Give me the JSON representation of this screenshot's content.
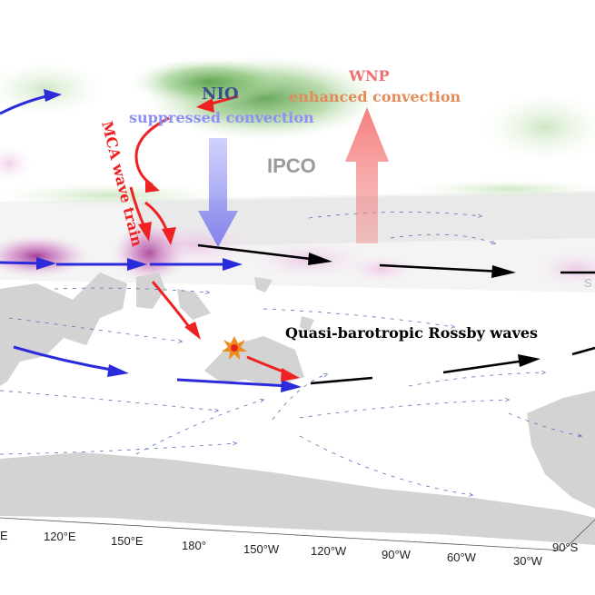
{
  "colors": {
    "enhanced_fill": "#7fb86a",
    "suppressed_fill": "#b24f9f",
    "blue_arrow": "#2b2bdc",
    "red_arrow": "#ee2222",
    "black_arrow": "#000000",
    "land": "#d3d3d3",
    "thin_arrow": "#5a6fb8",
    "blue_label": "#8f8ff5",
    "orange_label": "#e38b58",
    "red_label": "#f07070",
    "ipco_label": "#9a9a9a"
  },
  "labels": {
    "nio": "NIO",
    "nio_sub": "suppressed convection",
    "wnp": "WNP",
    "wnp_sub": "enhanced convection",
    "ipco": "IPCO",
    "mca": "MCA wave train",
    "rossby": "Quasi-barotropic Rossby waves",
    "edge_s": "S"
  },
  "axis": {
    "ticks": [
      "E",
      "120°E",
      "150°E",
      "180°",
      "150°W",
      "120°W",
      "90°W",
      "60°W",
      "30°W"
    ],
    "right_tick": "90°S"
  },
  "icons": {
    "source": "explosion-icon"
  }
}
